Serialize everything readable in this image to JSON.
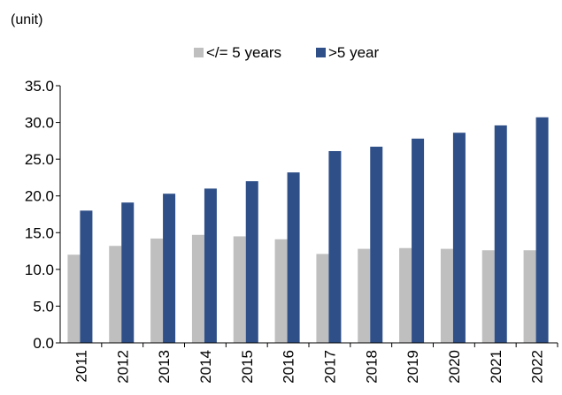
{
  "chart_data": {
    "type": "bar",
    "unit_label": "(unit)",
    "categories": [
      "2011",
      "2012",
      "2013",
      "2014",
      "2015",
      "2016",
      "2017",
      "2018",
      "2019",
      "2020",
      "2021",
      "2022"
    ],
    "series": [
      {
        "name": "</= 5 years",
        "color": "#bfbfbf",
        "values": [
          12.0,
          13.2,
          14.2,
          14.7,
          14.5,
          14.1,
          12.1,
          12.8,
          12.9,
          12.8,
          12.6,
          12.6
        ]
      },
      {
        "name": ">5 year",
        "color": "#2f4f88",
        "values": [
          18.0,
          19.1,
          20.3,
          21.0,
          22.0,
          23.2,
          26.1,
          26.7,
          27.8,
          28.6,
          29.6,
          30.7
        ]
      }
    ],
    "ylim": [
      0,
      35
    ],
    "yticks": [
      0,
      5,
      10,
      15,
      20,
      25,
      30,
      35
    ],
    "ytick_labels": [
      "0.0",
      "5.0",
      "10.0",
      "15.0",
      "20.0",
      "25.0",
      "30.0",
      "35.0"
    ],
    "grid": false,
    "legend_position": "top"
  }
}
